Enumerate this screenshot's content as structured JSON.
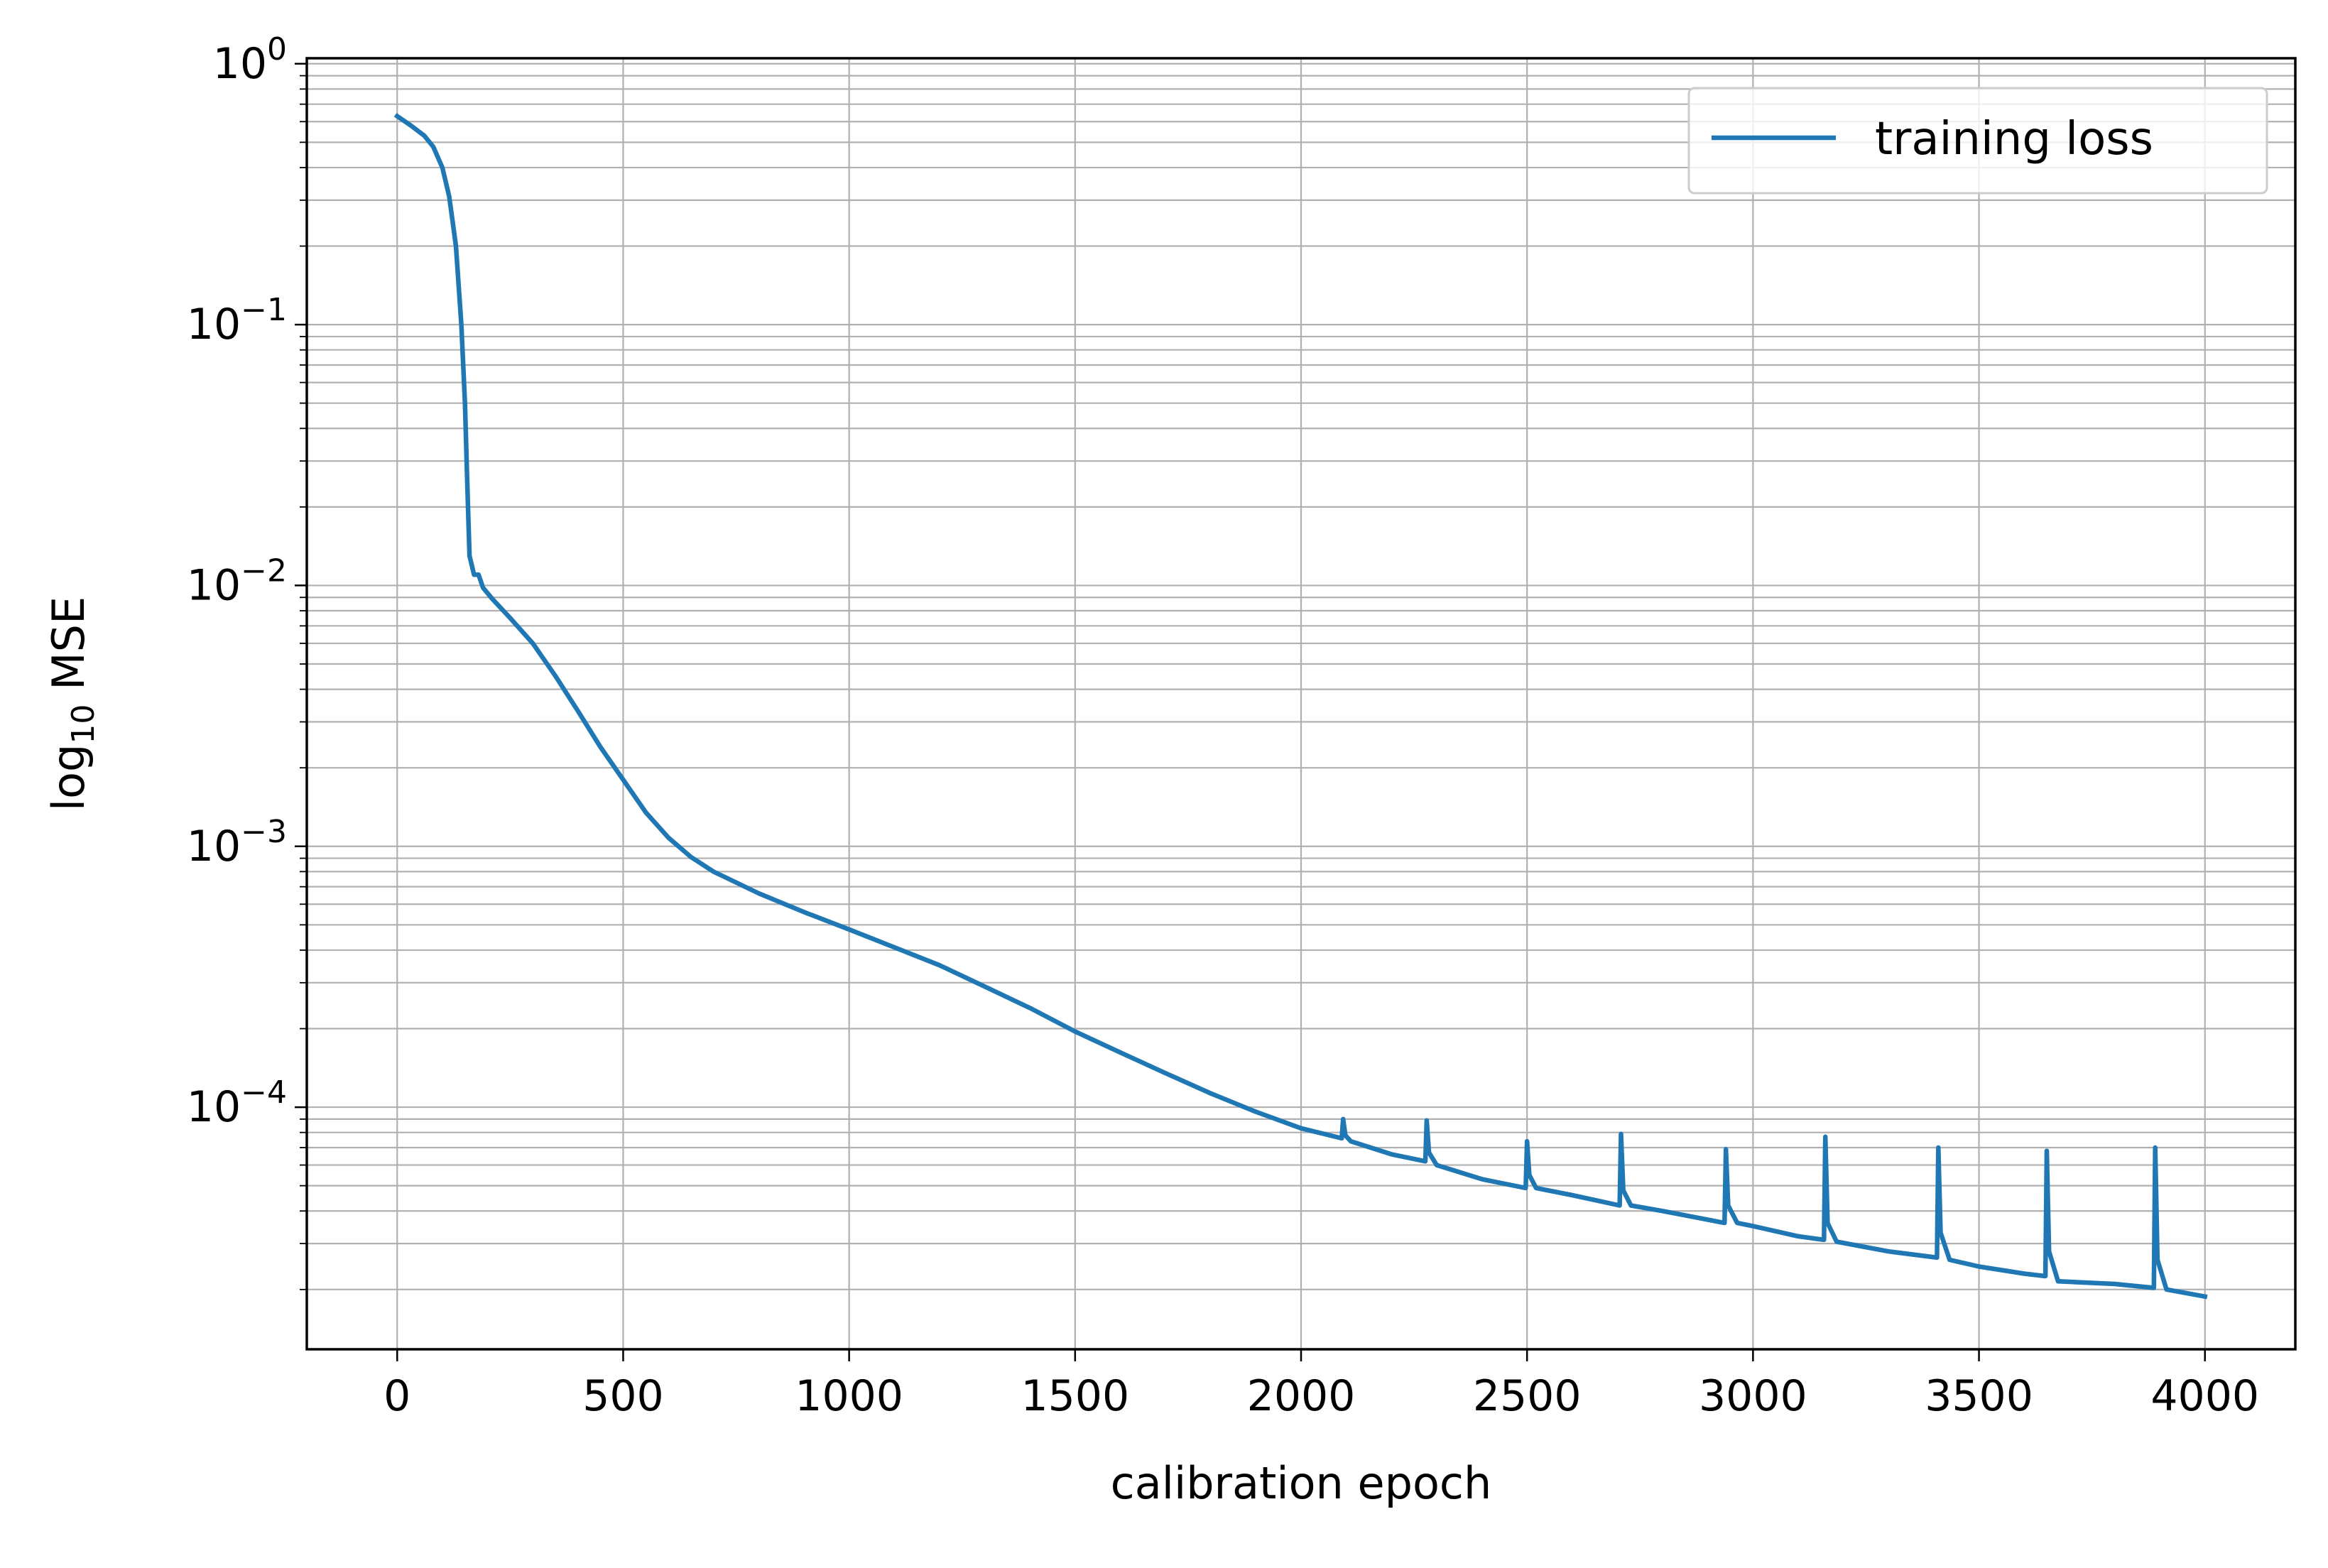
{
  "chart_data": {
    "type": "line",
    "xlabel": "calibration epoch",
    "ylabel": {
      "base": "log",
      "subscript": "10",
      "rest": " MSE"
    },
    "xlim": [
      -200,
      4200
    ],
    "ylim": [
      1.18e-05,
      1.05
    ],
    "yscale": "log",
    "grid": true,
    "grid_minor_y": true,
    "x_ticks": [
      0,
      500,
      1000,
      1500,
      2000,
      2500,
      3000,
      3500,
      4000
    ],
    "x_tick_labels": [
      "0",
      "500",
      "1000",
      "1500",
      "2000",
      "2500",
      "3000",
      "3500",
      "4000"
    ],
    "y_ticks": [
      {
        "value": 1,
        "base": "10",
        "exp": "0"
      },
      {
        "value": 0.1,
        "base": "10",
        "exp": "−1"
      },
      {
        "value": 0.01,
        "base": "10",
        "exp": "−2"
      },
      {
        "value": 0.001,
        "base": "10",
        "exp": "−3"
      },
      {
        "value": 0.0001,
        "base": "10",
        "exp": "−4"
      }
    ],
    "legend": {
      "position": "upper right",
      "entries": [
        "training loss"
      ]
    },
    "series": [
      {
        "name": "training loss",
        "color": "#1f77b4",
        "points": [
          [
            0,
            0.63
          ],
          [
            30,
            0.58
          ],
          [
            60,
            0.53
          ],
          [
            80,
            0.48
          ],
          [
            100,
            0.4
          ],
          [
            115,
            0.31
          ],
          [
            130,
            0.2
          ],
          [
            142,
            0.1
          ],
          [
            150,
            0.05
          ],
          [
            155,
            0.025
          ],
          [
            160,
            0.013
          ],
          [
            170,
            0.011
          ],
          [
            180,
            0.011
          ],
          [
            190,
            0.0098
          ],
          [
            210,
            0.0089
          ],
          [
            250,
            0.0075
          ],
          [
            300,
            0.006
          ],
          [
            350,
            0.0045
          ],
          [
            400,
            0.0033
          ],
          [
            450,
            0.0024
          ],
          [
            500,
            0.0018
          ],
          [
            550,
            0.00135
          ],
          [
            600,
            0.00108
          ],
          [
            650,
            0.00091
          ],
          [
            700,
            0.0008
          ],
          [
            800,
            0.00066
          ],
          [
            900,
            0.00056
          ],
          [
            1000,
            0.00048
          ],
          [
            1100,
            0.00041
          ],
          [
            1200,
            0.00035
          ],
          [
            1300,
            0.00029
          ],
          [
            1400,
            0.00024
          ],
          [
            1500,
            0.000195
          ],
          [
            1600,
            0.000162
          ],
          [
            1700,
            0.000135
          ],
          [
            1800,
            0.000113
          ],
          [
            1900,
            9.6e-05
          ],
          [
            2000,
            8.3e-05
          ],
          [
            2090,
            7.6e-05
          ],
          [
            2093,
            9e-05
          ],
          [
            2098,
            7.8e-05
          ],
          [
            2110,
            7.4e-05
          ],
          [
            2200,
            6.6e-05
          ],
          [
            2275,
            6.2e-05
          ],
          [
            2278,
            8.9e-05
          ],
          [
            2283,
            6.7e-05
          ],
          [
            2300,
            6e-05
          ],
          [
            2400,
            5.3e-05
          ],
          [
            2497,
            4.9e-05
          ],
          [
            2500,
            7.4e-05
          ],
          [
            2505,
            5.5e-05
          ],
          [
            2520,
            4.9e-05
          ],
          [
            2600,
            4.6e-05
          ],
          [
            2705,
            4.2e-05
          ],
          [
            2708,
            7.9e-05
          ],
          [
            2713,
            4.8e-05
          ],
          [
            2730,
            4.2e-05
          ],
          [
            2800,
            4e-05
          ],
          [
            2937,
            3.6e-05
          ],
          [
            2940,
            6.9e-05
          ],
          [
            2945,
            4.2e-05
          ],
          [
            2965,
            3.6e-05
          ],
          [
            3000,
            3.5e-05
          ],
          [
            3100,
            3.2e-05
          ],
          [
            3157,
            3.1e-05
          ],
          [
            3160,
            7.7e-05
          ],
          [
            3165,
            3.6e-05
          ],
          [
            3185,
            3.05e-05
          ],
          [
            3300,
            2.8e-05
          ],
          [
            3407,
            2.65e-05
          ],
          [
            3410,
            7e-05
          ],
          [
            3415,
            3.3e-05
          ],
          [
            3435,
            2.6e-05
          ],
          [
            3500,
            2.45e-05
          ],
          [
            3600,
            2.3e-05
          ],
          [
            3647,
            2.25e-05
          ],
          [
            3650,
            6.8e-05
          ],
          [
            3655,
            2.8e-05
          ],
          [
            3675,
            2.15e-05
          ],
          [
            3800,
            2.1e-05
          ],
          [
            3887,
            2.03e-05
          ],
          [
            3890,
            7e-05
          ],
          [
            3895,
            2.6e-05
          ],
          [
            3915,
            2e-05
          ],
          [
            4000,
            1.88e-05
          ]
        ]
      }
    ]
  }
}
